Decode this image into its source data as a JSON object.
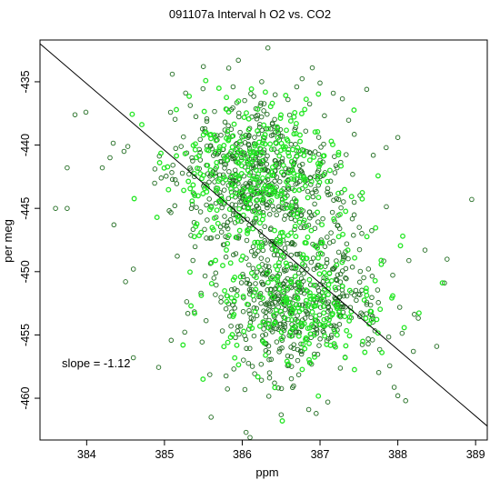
{
  "chart_data": {
    "type": "scatter",
    "title": "091107a   Interval h O2 vs. CO2",
    "xlabel": "ppm",
    "ylabel": "per meg",
    "xlim": [
      383.4,
      389.15
    ],
    "ylim": [
      -463.3,
      -431.7
    ],
    "xticks": [
      384,
      385,
      386,
      387,
      388,
      389
    ],
    "yticks": [
      -435,
      -440,
      -445,
      -450,
      -455,
      -460
    ],
    "annotation": "slope =  -1.12",
    "fit_line": {
      "x": [
        383.4,
        389.15
      ],
      "y": [
        -432.0,
        -462.2
      ],
      "color": "#000000"
    },
    "point_colors": {
      "dark": "#1f6b1f",
      "bright": "#22e622"
    },
    "clusters": [
      {
        "center_x": 386.2,
        "center_y": -442.5,
        "spread_x": 0.55,
        "spread_y": 3.0,
        "count": 900,
        "bright_fraction": 0.38
      },
      {
        "center_x": 386.7,
        "center_y": -452.5,
        "spread_x": 0.55,
        "spread_y": 2.8,
        "count": 750,
        "bright_fraction": 0.33
      }
    ],
    "sample_points": [
      [
        383.6,
        -445.0
      ],
      [
        383.75,
        -441.8
      ],
      [
        383.75,
        -445.0
      ],
      [
        383.85,
        -437.6
      ],
      [
        383.99,
        -437.4
      ],
      [
        384.2,
        -441.8
      ],
      [
        384.3,
        -441.0
      ],
      [
        384.35,
        -446.3
      ],
      [
        384.48,
        -440.5
      ],
      [
        384.5,
        -450.8
      ],
      [
        384.6,
        -449.8
      ],
      [
        384.6,
        -456.8
      ],
      [
        385.1,
        -434.4
      ],
      [
        385.3,
        -453.3
      ],
      [
        385.5,
        -433.8
      ],
      [
        385.6,
        -461.5
      ],
      [
        385.95,
        -433.3
      ],
      [
        386.05,
        -462.7
      ],
      [
        386.1,
        -463.1
      ],
      [
        386.25,
        -435.0
      ],
      [
        386.5,
        -461.3
      ],
      [
        386.7,
        -435.4
      ],
      [
        386.9,
        -433.9
      ],
      [
        386.95,
        -461.2
      ],
      [
        387.0,
        -435.1
      ],
      [
        387.1,
        -460.3
      ],
      [
        387.6,
        -435.6
      ],
      [
        387.85,
        -440.2
      ],
      [
        388.0,
        -439.4
      ],
      [
        388.0,
        -459.8
      ],
      [
        388.1,
        -460.2
      ],
      [
        388.2,
        -456.3
      ],
      [
        388.35,
        -448.3
      ],
      [
        388.5,
        -455.9
      ],
      [
        388.6,
        -450.9
      ],
      [
        388.95,
        -444.3
      ]
    ]
  }
}
